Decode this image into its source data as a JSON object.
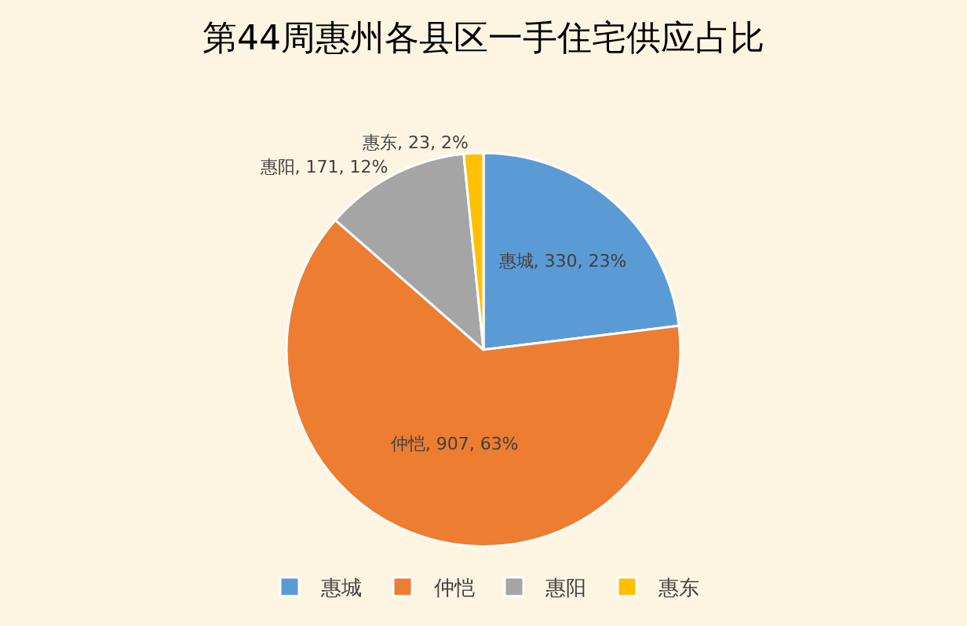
{
  "chart_data": {
    "type": "pie",
    "title": "第44周惠州各县区一手住宅供应占比",
    "categories": [
      "惠城",
      "仲恺",
      "惠阳",
      "惠东"
    ],
    "values": [
      330,
      907,
      171,
      23
    ],
    "colors": [
      "#5b9bd5",
      "#ed7d31",
      "#a5a5a5",
      "#ffc000"
    ],
    "value_labels": [
      "惠城, 330, 23%",
      "仲恺, 907, 63%",
      "惠阳, 171, 12%",
      "惠东, 23, 2%"
    ],
    "legend": "bottom"
  }
}
